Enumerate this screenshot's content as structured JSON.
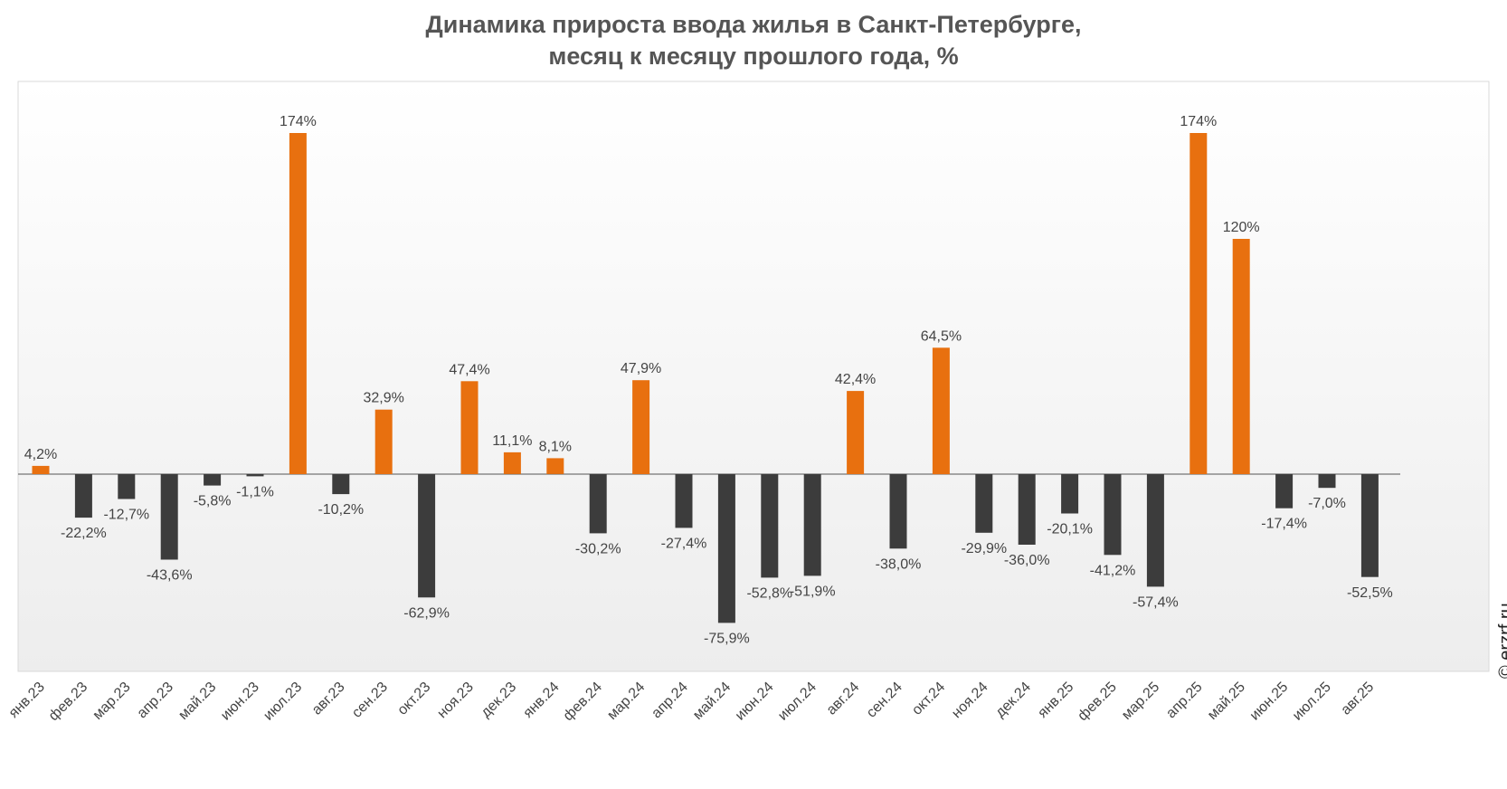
{
  "header": {
    "title_line1": "Динамика прироста ввода жилья в Санкт-Петербурге,",
    "title_line2": "месяц к месяцу прошлого года, %"
  },
  "credit": "© erzrf.ru",
  "chart_data": {
    "type": "bar",
    "title": "Динамика прироста ввода жилья в Санкт-Петербурге, месяц к месяцу прошлого года, %",
    "xlabel": "",
    "ylabel": "",
    "ylim": [
      -96,
      190
    ],
    "grid": false,
    "colors": {
      "positive": "#e8700f",
      "negative": "#3c3c3c"
    },
    "categories": [
      "янв.23",
      "фев.23",
      "мар.23",
      "апр.23",
      "май.23",
      "июн.23",
      "июл.23",
      "авг.23",
      "сен.23",
      "окт.23",
      "ноя.23",
      "дек.23",
      "янв.24",
      "фев.24",
      "мар.24",
      "апр.24",
      "май.24",
      "июн.24",
      "июл.24",
      "авг.24",
      "сен.24",
      "окт.24",
      "ноя.24",
      "дек.24",
      "янв.25",
      "фев.25",
      "мар.25",
      "апр.25",
      "май.25",
      "июн.25",
      "июл.25",
      "авг.25"
    ],
    "values": [
      4.2,
      -22.2,
      -12.7,
      -43.6,
      -5.8,
      -1.1,
      174,
      -10.2,
      32.9,
      -62.9,
      47.4,
      11.1,
      8.1,
      -30.2,
      47.9,
      -27.4,
      -75.9,
      -52.8,
      -51.9,
      42.4,
      -38.0,
      64.5,
      -29.9,
      -36.0,
      -20.1,
      -41.2,
      -57.4,
      174,
      120,
      -17.4,
      -7.0,
      -52.5
    ],
    "data_labels": [
      "4,2%",
      "-22,2%",
      "-12,7%",
      "-43,6%",
      "-5,8%",
      "-1,1%",
      "174%",
      "-10,2%",
      "32,9%",
      "-62,9%",
      "47,4%",
      "11,1%",
      "8,1%",
      "-30,2%",
      "47,9%",
      "-27,4%",
      "-75,9%",
      "-52,8%",
      "-51,9%",
      "42,4%",
      "-38,0%",
      "64,5%",
      "-29,9%",
      "-36,0%",
      "-20,1%",
      "-41,2%",
      "-57,4%",
      "174%",
      "120%",
      "-17,4%",
      "-7,0%",
      "-52,5%"
    ]
  }
}
